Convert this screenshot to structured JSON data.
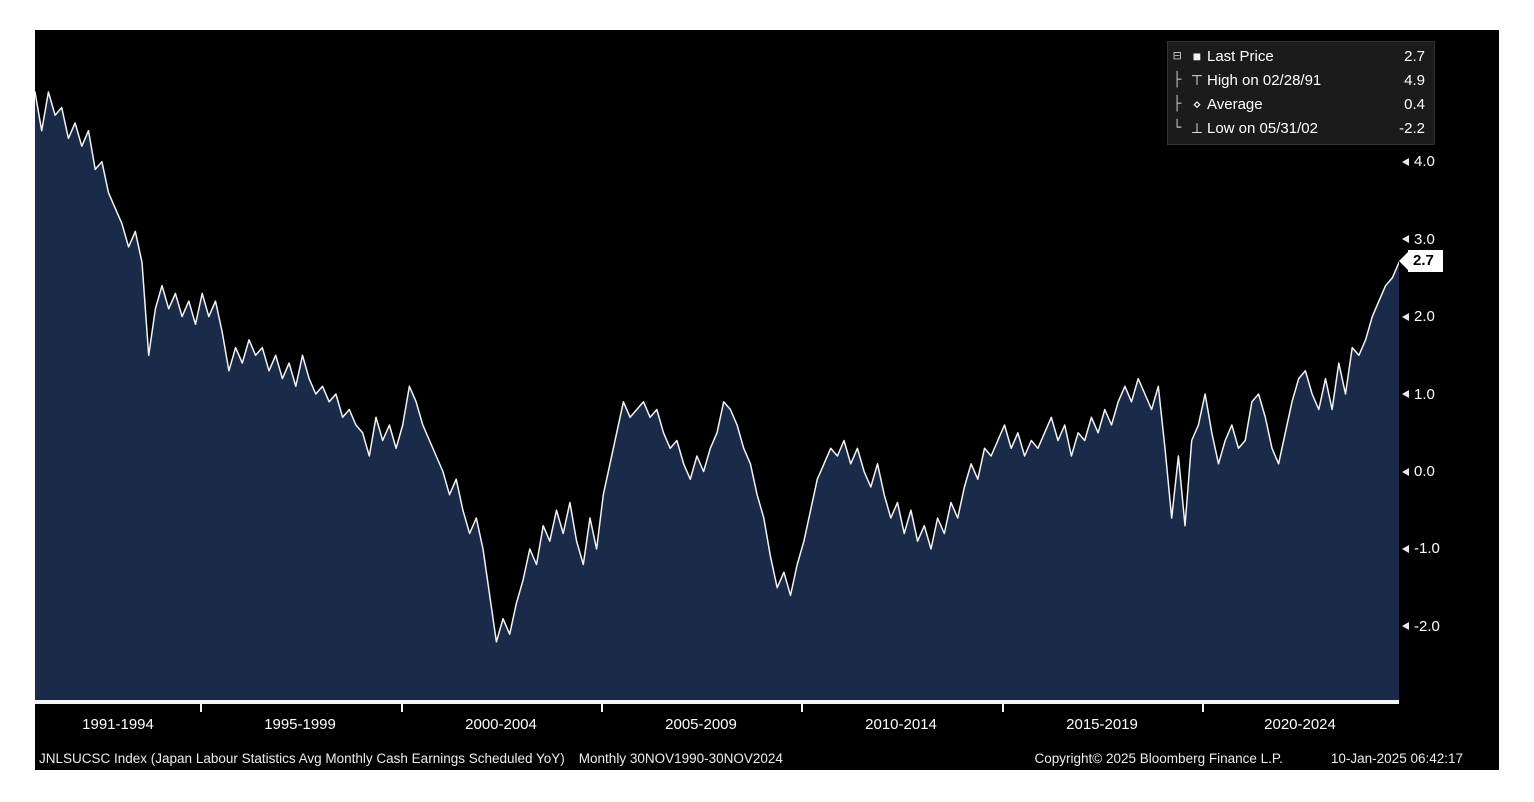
{
  "chart": {
    "background": "#000000",
    "area_fill": "#1a2b4a",
    "line_color": "#f2f2f2",
    "axis_color": "#ffffff"
  },
  "legend": {
    "items": [
      {
        "marker": "square-icon",
        "label": "Last Price",
        "value": "2.7"
      },
      {
        "marker": "high-icon",
        "label": "High on 02/28/91",
        "value": "4.9"
      },
      {
        "marker": "average-icon",
        "label": "Average",
        "value": "0.4"
      },
      {
        "marker": "low-icon",
        "label": "Low on 05/31/02",
        "value": "-2.2"
      }
    ]
  },
  "x_axis": {
    "labels": [
      "1991-1994",
      "1995-1999",
      "2000-2004",
      "2005-2009",
      "2010-2014",
      "2015-2019",
      "2020-2024"
    ]
  },
  "footer": {
    "description": "JNLSUCSC Index (Japan Labour Statistics Avg Monthly Cash Earnings Scheduled YoY)",
    "range": "Monthly 30NOV1990-30NOV2024",
    "copyright": "Copyright© 2025 Bloomberg Finance L.P.",
    "timestamp": "10-Jan-2025 06:42:17"
  },
  "chart_data": {
    "type": "area",
    "title": "JNLSUCSC Index (Japan Labour Statistics Avg Monthly Cash Earnings Scheduled YoY)",
    "x_start": 1990.875,
    "x_end": 2024.917,
    "ylim": [
      -2.95,
      5.7
    ],
    "y_ticks": [
      5.0,
      4.0,
      3.0,
      2.0,
      1.0,
      0.0,
      -1.0,
      -2.0
    ],
    "x_tick_years": [
      1995,
      2000,
      2005,
      2010,
      2015,
      2020
    ],
    "stats": {
      "last": 2.7,
      "high": 4.9,
      "high_date": "02/28/91",
      "average": 0.4,
      "low": -2.2,
      "low_date": "05/31/02"
    },
    "series": [
      {
        "name": "JNLSUCSC Index",
        "values": [
          4.9,
          4.4,
          4.9,
          4.6,
          4.7,
          4.3,
          4.5,
          4.2,
          4.4,
          3.9,
          4.0,
          3.6,
          3.4,
          3.2,
          2.9,
          3.1,
          2.7,
          1.5,
          2.1,
          2.4,
          2.1,
          2.3,
          2.0,
          2.2,
          1.9,
          2.3,
          2.0,
          2.2,
          1.8,
          1.3,
          1.6,
          1.4,
          1.7,
          1.5,
          1.6,
          1.3,
          1.5,
          1.2,
          1.4,
          1.1,
          1.5,
          1.2,
          1.0,
          1.1,
          0.9,
          1.0,
          0.7,
          0.8,
          0.6,
          0.5,
          0.2,
          0.7,
          0.4,
          0.6,
          0.3,
          0.6,
          1.1,
          0.9,
          0.6,
          0.4,
          0.2,
          0.0,
          -0.3,
          -0.1,
          -0.5,
          -0.8,
          -0.6,
          -1.0,
          -1.6,
          -2.2,
          -1.9,
          -2.1,
          -1.7,
          -1.4,
          -1.0,
          -1.2,
          -0.7,
          -0.9,
          -0.5,
          -0.8,
          -0.4,
          -0.9,
          -1.2,
          -0.6,
          -1.0,
          -0.3,
          0.1,
          0.5,
          0.9,
          0.7,
          0.8,
          0.9,
          0.7,
          0.8,
          0.5,
          0.3,
          0.4,
          0.1,
          -0.1,
          0.2,
          0.0,
          0.3,
          0.5,
          0.9,
          0.8,
          0.6,
          0.3,
          0.1,
          -0.3,
          -0.6,
          -1.1,
          -1.5,
          -1.3,
          -1.6,
          -1.2,
          -0.9,
          -0.5,
          -0.1,
          0.1,
          0.3,
          0.2,
          0.4,
          0.1,
          0.3,
          0.0,
          -0.2,
          0.1,
          -0.3,
          -0.6,
          -0.4,
          -0.8,
          -0.5,
          -0.9,
          -0.7,
          -1.0,
          -0.6,
          -0.8,
          -0.4,
          -0.6,
          -0.2,
          0.1,
          -0.1,
          0.3,
          0.2,
          0.4,
          0.6,
          0.3,
          0.5,
          0.2,
          0.4,
          0.3,
          0.5,
          0.7,
          0.4,
          0.6,
          0.2,
          0.5,
          0.4,
          0.7,
          0.5,
          0.8,
          0.6,
          0.9,
          1.1,
          0.9,
          1.2,
          1.0,
          0.8,
          1.1,
          0.3,
          -0.6,
          0.2,
          -0.7,
          0.4,
          0.6,
          1.0,
          0.5,
          0.1,
          0.4,
          0.6,
          0.3,
          0.4,
          0.9,
          1.0,
          0.7,
          0.3,
          0.1,
          0.5,
          0.9,
          1.2,
          1.3,
          1.0,
          0.8,
          1.2,
          0.8,
          1.4,
          1.0,
          1.6,
          1.5,
          1.7,
          2.0,
          2.2,
          2.4,
          2.5,
          2.7
        ]
      }
    ]
  }
}
